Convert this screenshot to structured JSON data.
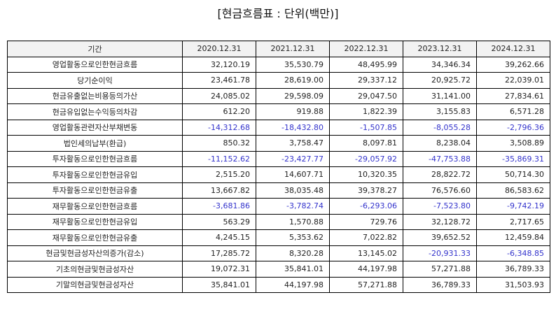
{
  "title": "[현금흐름표 : 단위(백만)]",
  "negative_color": "#3333cc",
  "headers": [
    "기간",
    "2020.12.31",
    "2021.12.31",
    "2022.12.31",
    "2023.12.31",
    "2024.12.31"
  ],
  "rows": [
    {
      "label": "영업활동으로인한현금흐름",
      "values": [
        "32,120.19",
        "35,530.79",
        "48,495.99",
        "34,346.34",
        "39,262.66"
      ]
    },
    {
      "label": "당기순이익",
      "values": [
        "23,461.78",
        "28,619.00",
        "29,337.12",
        "20,925.72",
        "22,039.01"
      ]
    },
    {
      "label": "현금유출없는비용등의가산",
      "values": [
        "24,085.02",
        "29,598.09",
        "29,047.50",
        "31,141.00",
        "27,834.61"
      ]
    },
    {
      "label": "현금유입없는수익등의차감",
      "values": [
        "612.20",
        "919.88",
        "1,822.39",
        "3,155.83",
        "6,571.28"
      ]
    },
    {
      "label": "영업활동관련자산부채변동",
      "values": [
        "-14,312.68",
        "-18,432.80",
        "-1,507.85",
        "-8,055.28",
        "-2,796.36"
      ]
    },
    {
      "label": "법인세의납부(환급)",
      "values": [
        "850.32",
        "3,758.47",
        "8,097.81",
        "8,238.04",
        "3,508.89"
      ]
    },
    {
      "label": "투자활동으로인한현금흐름",
      "values": [
        "-11,152.62",
        "-23,427.77",
        "-29,057.92",
        "-47,753.88",
        "-35,869.31"
      ]
    },
    {
      "label": "투자활동으로인한현금유입",
      "values": [
        "2,515.20",
        "14,607.71",
        "10,320.35",
        "28,822.72",
        "50,714.30"
      ]
    },
    {
      "label": "투자활동으로인한현금유출",
      "values": [
        "13,667.82",
        "38,035.48",
        "39,378.27",
        "76,576.60",
        "86,583.62"
      ]
    },
    {
      "label": "재무활동으로인한현금흐름",
      "values": [
        "-3,681.86",
        "-3,782.74",
        "-6,293.06",
        "-7,523.80",
        "-9,742.19"
      ]
    },
    {
      "label": "재무활동으로인한현금유입",
      "values": [
        "563.29",
        "1,570.88",
        "729.76",
        "32,128.72",
        "2,717.65"
      ]
    },
    {
      "label": "재무활동으로인한현금유출",
      "values": [
        "4,245.15",
        "5,353.62",
        "7,022.82",
        "39,652.52",
        "12,459.84"
      ]
    },
    {
      "label": "현금및현금성자산의증가(감소)",
      "values": [
        "17,285.72",
        "8,320.28",
        "13,145.02",
        "-20,931.33",
        "-6,348.85"
      ]
    },
    {
      "label": "기초의현금및현금성자산",
      "values": [
        "19,072.31",
        "35,841.01",
        "44,197.98",
        "57,271.88",
        "36,789.33"
      ]
    },
    {
      "label": "기말의현금및현금성자산",
      "values": [
        "35,841.01",
        "44,197.98",
        "57,271.88",
        "36,789.33",
        "31,503.93"
      ]
    }
  ]
}
